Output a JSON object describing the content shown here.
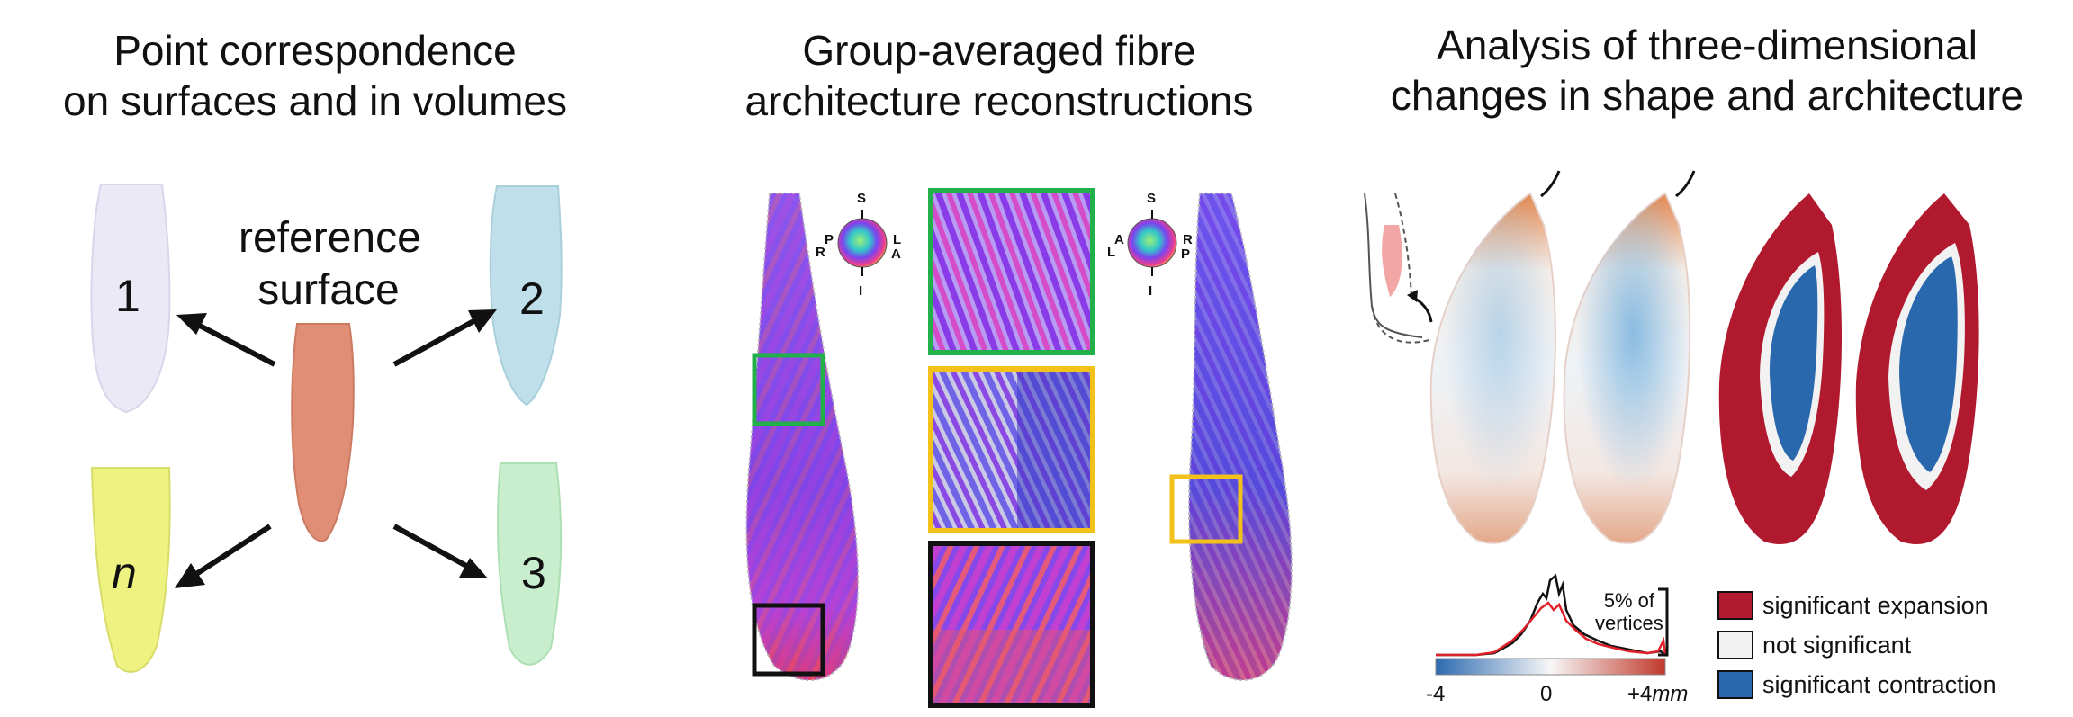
{
  "panels": {
    "left": {
      "title_line1": "Point correspondence",
      "title_line2": "on surfaces and in volumes",
      "reference_line1": "reference",
      "reference_line2": "surface",
      "labels": [
        "1",
        "2",
        "n",
        "3"
      ]
    },
    "middle": {
      "title_line1": "Group-averaged fibre",
      "title_line2": "architecture reconstructions",
      "orientation_left": {
        "S": "S",
        "I": "I",
        "P": "P",
        "R": "R",
        "L": "L",
        "A": "A"
      },
      "orientation_right": {
        "S": "S",
        "I": "I",
        "A": "A",
        "L": "L",
        "R": "R",
        "P": "P"
      },
      "box_colors": [
        "#22b04a",
        "#f2c21b",
        "#111111"
      ]
    },
    "right": {
      "title_line1": "Analysis of three-dimensional",
      "title_line2": "changes in shape and architecture",
      "histogram_label_line1": "5% of",
      "histogram_label_line2": "vertices",
      "scale_min": "-4",
      "scale_mid": "0",
      "scale_max": "+4",
      "scale_unit": "mm",
      "legend": [
        {
          "label": "significant expansion",
          "color": "#b11a2e"
        },
        {
          "label": "not significant",
          "color": "#f2f2f2"
        },
        {
          "label": "significant contraction",
          "color": "#2a68ae"
        }
      ]
    }
  }
}
